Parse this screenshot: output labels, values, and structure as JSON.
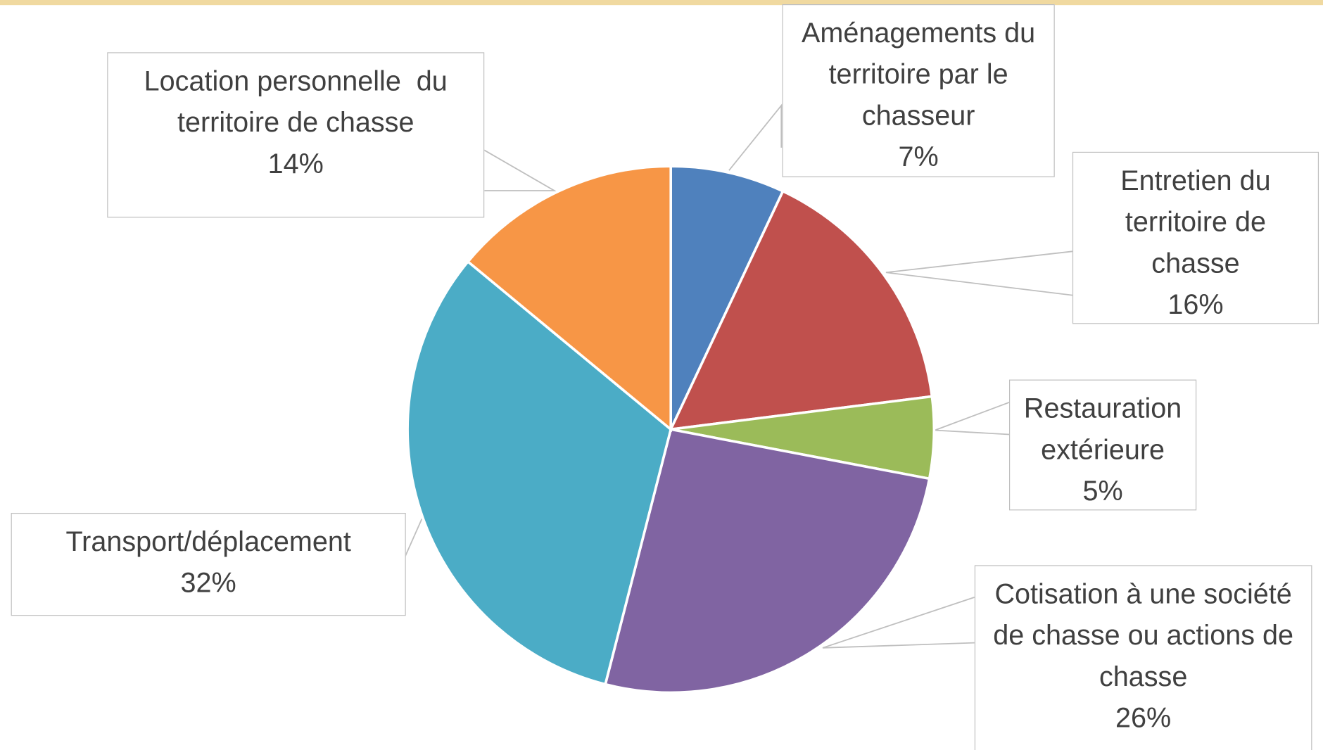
{
  "chart_data": {
    "type": "pie",
    "categories": [
      "Aménagements du territoire par le chasseur",
      "Entretien du territoire de chasse",
      "Restauration extérieure",
      "Cotisation à une société de chasse ou actions de chasse",
      "Transport/déplacement",
      "Location personnelle  du territoire de chasse"
    ],
    "values": [
      7,
      16,
      5,
      26,
      32,
      14
    ],
    "value_labels": [
      "7%",
      "16%",
      "5%",
      "26%",
      "32%",
      "14%"
    ],
    "colors": [
      "#4f81bd",
      "#c0504d",
      "#9bbb59",
      "#8064a2",
      "#4bacc6",
      "#f79646"
    ]
  }
}
